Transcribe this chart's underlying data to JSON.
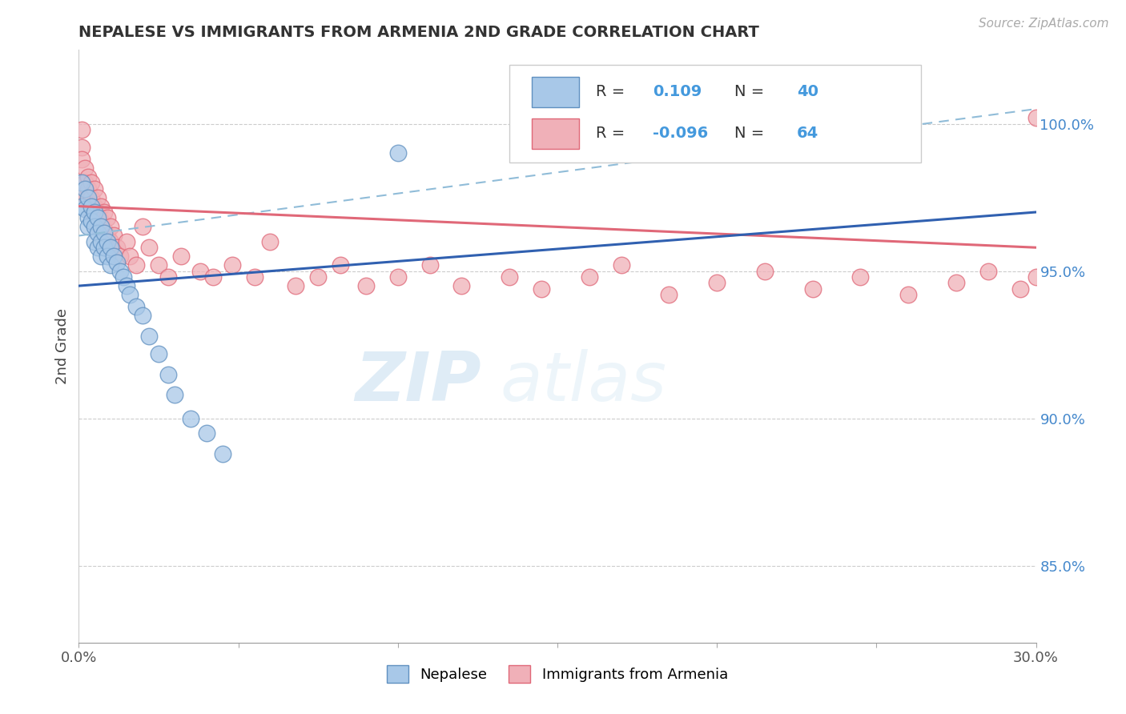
{
  "title": "NEPALESE VS IMMIGRANTS FROM ARMENIA 2ND GRADE CORRELATION CHART",
  "source_text": "Source: ZipAtlas.com",
  "ylabel": "2nd Grade",
  "ylabel_right_ticks": [
    "85.0%",
    "90.0%",
    "95.0%",
    "100.0%"
  ],
  "ylabel_right_values": [
    0.85,
    0.9,
    0.95,
    1.0
  ],
  "x_min": 0.0,
  "x_max": 0.3,
  "y_min": 0.824,
  "y_max": 1.025,
  "r_blue": 0.109,
  "n_blue": 40,
  "r_pink": -0.096,
  "n_pink": 64,
  "color_blue_fill": "#a8c8e8",
  "color_blue_edge": "#6090c0",
  "color_pink_fill": "#f0b0b8",
  "color_pink_edge": "#e06878",
  "color_blue_line": "#3060b0",
  "color_pink_line": "#e06878",
  "color_dashed": "#90bcd8",
  "legend_label_blue": "Nepalese",
  "legend_label_pink": "Immigrants from Armenia",
  "watermark_zip": "ZIP",
  "watermark_atlas": "atlas",
  "blue_x": [
    0.001,
    0.001,
    0.002,
    0.002,
    0.003,
    0.003,
    0.003,
    0.004,
    0.004,
    0.005,
    0.005,
    0.005,
    0.006,
    0.006,
    0.006,
    0.007,
    0.007,
    0.007,
    0.008,
    0.008,
    0.009,
    0.009,
    0.01,
    0.01,
    0.011,
    0.012,
    0.013,
    0.014,
    0.015,
    0.016,
    0.018,
    0.02,
    0.022,
    0.025,
    0.028,
    0.03,
    0.035,
    0.04,
    0.045,
    0.1
  ],
  "blue_y": [
    0.98,
    0.972,
    0.978,
    0.971,
    0.975,
    0.968,
    0.965,
    0.972,
    0.967,
    0.97,
    0.965,
    0.96,
    0.968,
    0.963,
    0.958,
    0.965,
    0.96,
    0.955,
    0.963,
    0.958,
    0.96,
    0.955,
    0.958,
    0.952,
    0.955,
    0.953,
    0.95,
    0.948,
    0.945,
    0.942,
    0.938,
    0.935,
    0.928,
    0.922,
    0.915,
    0.908,
    0.9,
    0.895,
    0.888,
    0.99
  ],
  "pink_x": [
    0.001,
    0.001,
    0.001,
    0.002,
    0.002,
    0.002,
    0.003,
    0.003,
    0.003,
    0.004,
    0.004,
    0.004,
    0.005,
    0.005,
    0.005,
    0.006,
    0.006,
    0.006,
    0.007,
    0.007,
    0.008,
    0.008,
    0.009,
    0.009,
    0.01,
    0.01,
    0.011,
    0.012,
    0.013,
    0.015,
    0.016,
    0.018,
    0.02,
    0.022,
    0.025,
    0.028,
    0.032,
    0.038,
    0.042,
    0.048,
    0.055,
    0.06,
    0.068,
    0.075,
    0.082,
    0.09,
    0.1,
    0.11,
    0.12,
    0.135,
    0.145,
    0.16,
    0.17,
    0.185,
    0.2,
    0.215,
    0.23,
    0.245,
    0.26,
    0.275,
    0.285,
    0.295,
    0.3,
    0.3
  ],
  "pink_y": [
    0.998,
    0.992,
    0.988,
    0.985,
    0.98,
    0.976,
    0.982,
    0.978,
    0.974,
    0.98,
    0.975,
    0.97,
    0.978,
    0.972,
    0.968,
    0.975,
    0.97,
    0.965,
    0.972,
    0.967,
    0.97,
    0.964,
    0.968,
    0.962,
    0.965,
    0.96,
    0.962,
    0.958,
    0.955,
    0.96,
    0.955,
    0.952,
    0.965,
    0.958,
    0.952,
    0.948,
    0.955,
    0.95,
    0.948,
    0.952,
    0.948,
    0.96,
    0.945,
    0.948,
    0.952,
    0.945,
    0.948,
    0.952,
    0.945,
    0.948,
    0.944,
    0.948,
    0.952,
    0.942,
    0.946,
    0.95,
    0.944,
    0.948,
    0.942,
    0.946,
    0.95,
    0.944,
    0.948,
    1.002
  ],
  "blue_line_x0": 0.0,
  "blue_line_y0": 0.945,
  "blue_line_x1": 0.3,
  "blue_line_y1": 0.97,
  "pink_line_x0": 0.0,
  "pink_line_y0": 0.972,
  "pink_line_x1": 0.3,
  "pink_line_y1": 0.958,
  "dash_line_x0": 0.0,
  "dash_line_y0": 0.962,
  "dash_line_x1": 0.3,
  "dash_line_y1": 1.005
}
